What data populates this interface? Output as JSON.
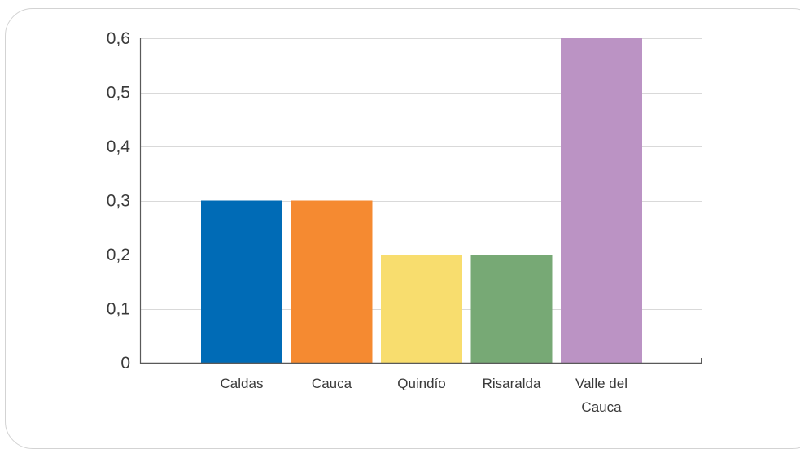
{
  "chart_data": {
    "type": "bar",
    "title": "",
    "xlabel": "",
    "ylabel": "",
    "categories": [
      "Caldas",
      "Cauca",
      "Quindío",
      "Risaralda",
      "Valle del Cauca"
    ],
    "category_label_lines": [
      [
        "Caldas"
      ],
      [
        "Cauca"
      ],
      [
        "Quindío"
      ],
      [
        "Risaralda"
      ],
      [
        "Valle del",
        "Cauca"
      ]
    ],
    "values": [
      0.3,
      0.3,
      0.2,
      0.2,
      0.6
    ],
    "bar_colors": [
      "#006bb6",
      "#f58a31",
      "#f8dd6e",
      "#77a975",
      "#bb93c4"
    ],
    "ylim": [
      0,
      0.6
    ],
    "yticks": [
      0,
      0.1,
      0.2,
      0.3,
      0.4,
      0.5,
      0.6
    ],
    "ytick_labels": [
      "0",
      "0,1",
      "0,2",
      "0,3",
      "0,4",
      "0,5",
      "0,6"
    ],
    "grid": true,
    "legend": "none",
    "gridline_color": "#d9d9d9",
    "axis_color": "#595959"
  }
}
